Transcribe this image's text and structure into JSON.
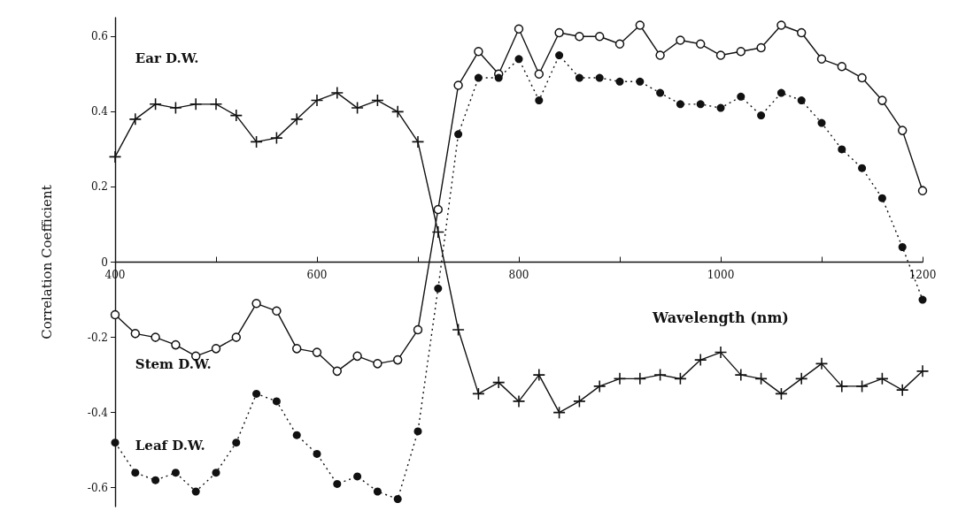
{
  "chart_data": {
    "type": "line",
    "xlabel": "Wavelength (nm)",
    "ylabel": "Correlation Coefficient",
    "x": [
      400,
      420,
      440,
      460,
      480,
      500,
      520,
      540,
      560,
      580,
      600,
      620,
      640,
      660,
      680,
      700,
      720,
      740,
      760,
      780,
      800,
      820,
      840,
      860,
      880,
      900,
      920,
      940,
      960,
      980,
      1000,
      1020,
      1040,
      1060,
      1080,
      1100,
      1120,
      1140,
      1160,
      1180,
      1200
    ],
    "series": [
      {
        "name": "Ear D.W.",
        "color": "#111111",
        "marker": "cross",
        "line_style": "solid",
        "values": [
          0.28,
          0.38,
          0.42,
          0.41,
          0.42,
          0.42,
          0.39,
          0.32,
          0.33,
          0.38,
          0.43,
          0.45,
          0.41,
          0.43,
          0.4,
          0.32,
          0.08,
          -0.18,
          -0.35,
          -0.32,
          -0.37,
          -0.3,
          -0.4,
          -0.37,
          -0.33,
          -0.31,
          -0.31,
          -0.3,
          -0.31,
          -0.26,
          -0.24,
          -0.3,
          -0.31,
          -0.35,
          -0.31,
          -0.27,
          -0.33,
          -0.33,
          -0.31,
          -0.34,
          -0.29
        ]
      },
      {
        "name": "Stem D.W.",
        "color": "#111111",
        "marker": "circle",
        "line_style": "solid",
        "values": [
          -0.14,
          -0.19,
          -0.2,
          -0.22,
          -0.25,
          -0.23,
          -0.2,
          -0.11,
          -0.13,
          -0.23,
          -0.24,
          -0.29,
          -0.25,
          -0.27,
          -0.26,
          -0.18,
          0.14,
          0.47,
          0.56,
          0.5,
          0.62,
          0.5,
          0.61,
          0.6,
          0.6,
          0.58,
          0.63,
          0.55,
          0.59,
          0.58,
          0.55,
          0.56,
          0.57,
          0.63,
          0.61,
          0.54,
          0.52,
          0.49,
          0.43,
          0.35,
          0.19
        ]
      },
      {
        "name": "Leaf D.W.",
        "color": "#111111",
        "marker": "filled_circle",
        "line_style": "dotted",
        "values": [
          -0.48,
          -0.56,
          -0.58,
          -0.56,
          -0.61,
          -0.56,
          -0.48,
          -0.35,
          -0.37,
          -0.46,
          -0.51,
          -0.59,
          -0.57,
          -0.61,
          -0.63,
          -0.45,
          -0.07,
          0.34,
          0.49,
          0.49,
          0.54,
          0.43,
          0.55,
          0.49,
          0.49,
          0.48,
          0.48,
          0.45,
          0.42,
          0.42,
          0.41,
          0.44,
          0.39,
          0.45,
          0.43,
          0.37,
          0.3,
          0.25,
          0.17,
          0.04,
          -0.1
        ]
      }
    ],
    "xlim": [
      400,
      1200
    ],
    "xticks": [
      400,
      {
        "value": 500,
        "label": null
      },
      600,
      {
        "value": 700,
        "label": null
      },
      800,
      {
        "value": 900,
        "label": null
      },
      1000,
      {
        "value": 1100,
        "label": null
      },
      1200
    ],
    "ylim": [
      -0.65,
      0.65
    ],
    "yticks": [
      -0.6,
      -0.4,
      -0.2,
      0,
      0.2,
      0.4,
      0.6
    ],
    "grid": false,
    "legend": false
  }
}
